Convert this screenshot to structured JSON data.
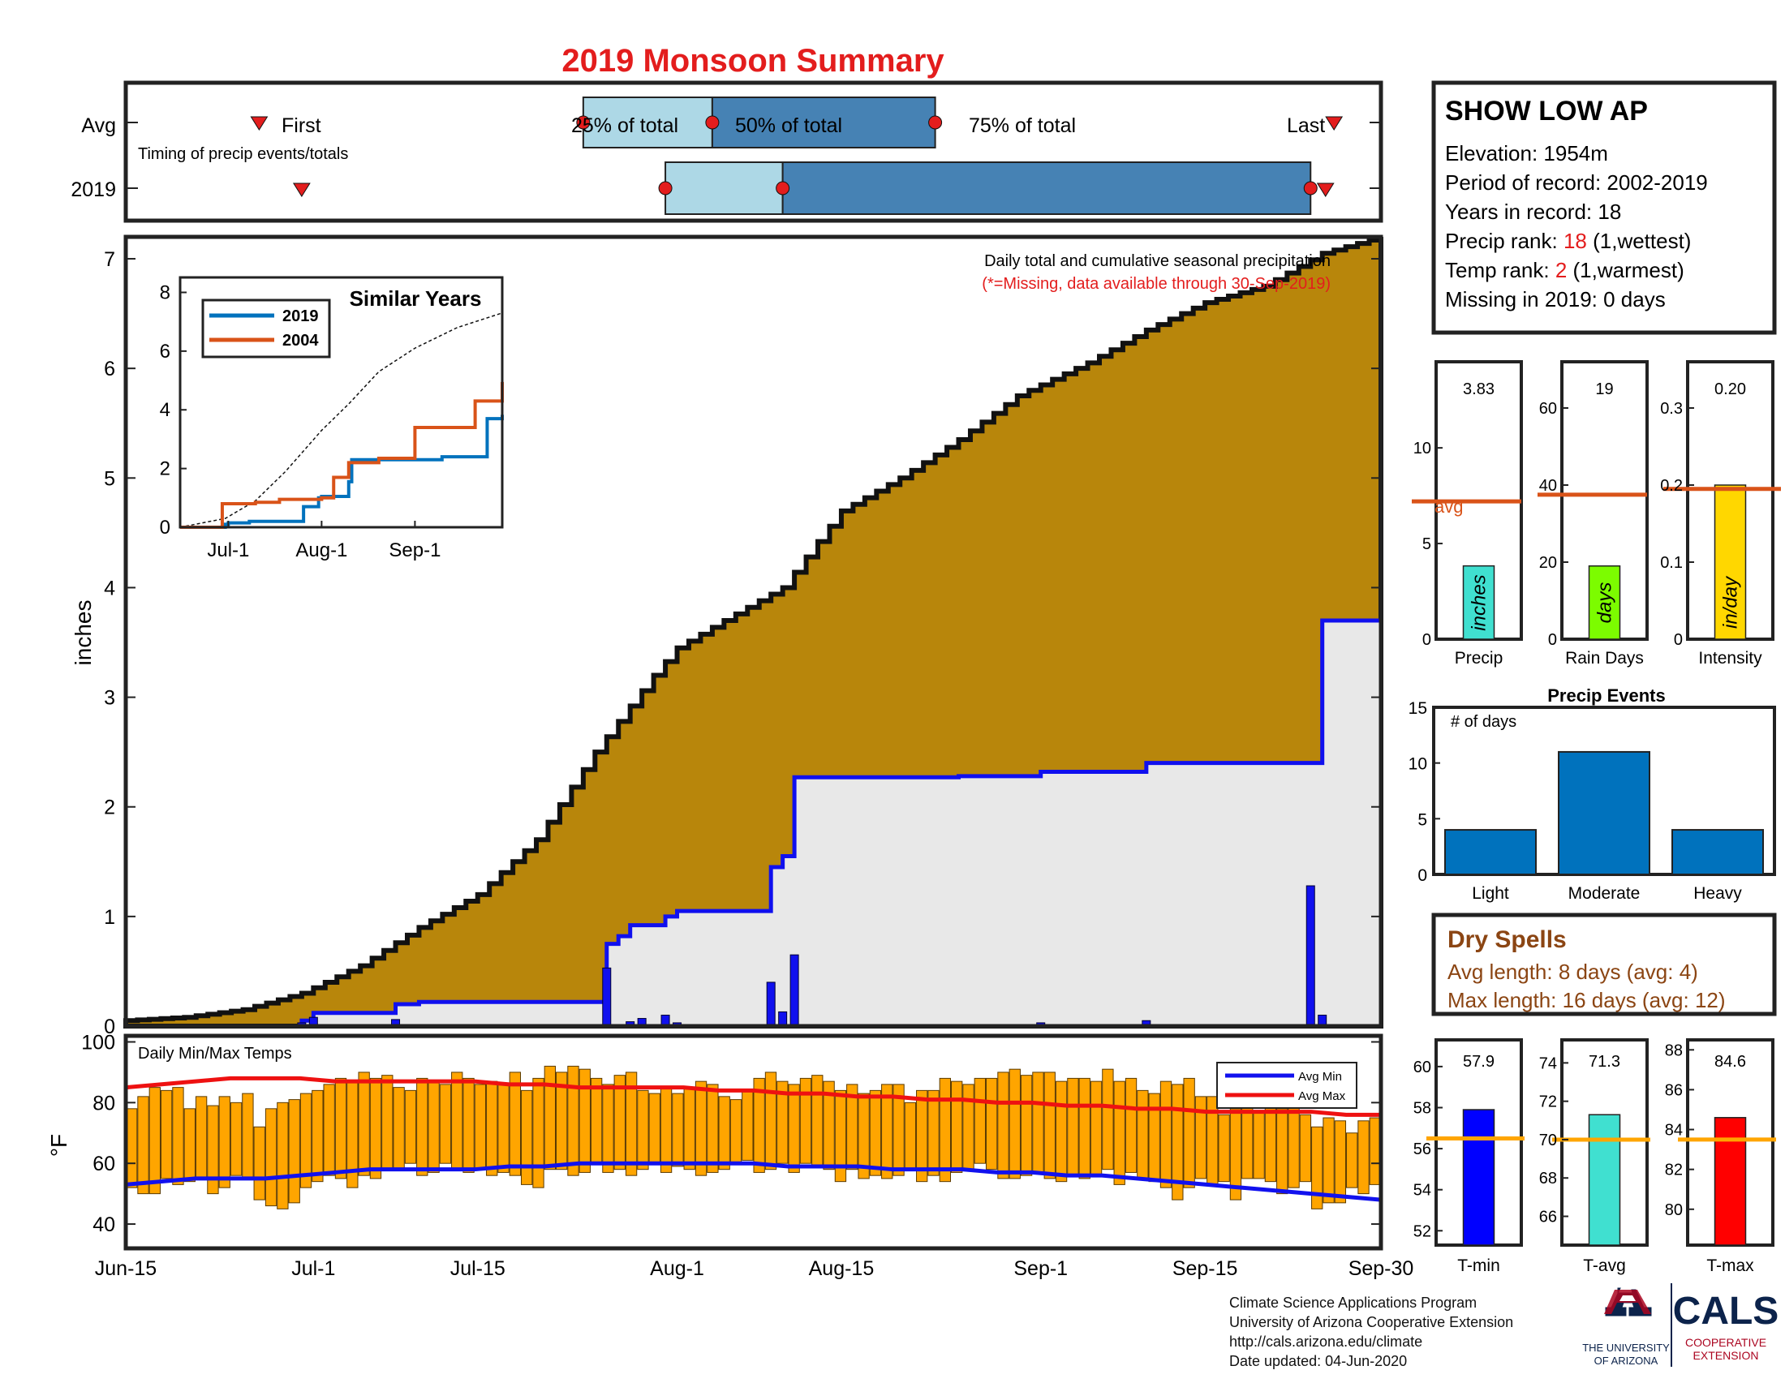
{
  "title": "2019 Monsoon Summary",
  "timing": {
    "row_avg": "Avg",
    "row_year": "2019",
    "subtitle": "Timing of precip events/totals",
    "first_label": "First",
    "last_label": "Last",
    "p25_label": "25% of total",
    "p50_label": "50% of total",
    "p75_label": "75% of total",
    "avg": {
      "first": "Jun-29",
      "p25": "Jul-24",
      "p50": "Aug-4",
      "p75": "Aug-23",
      "last": "Sep-26"
    },
    "y2019": {
      "first": "Jun-30",
      "p25": "Jul-31",
      "p50": "Aug-10",
      "p75": "Sep-24",
      "last": "Sep-25"
    }
  },
  "station": {
    "name": "SHOW LOW AP",
    "elevation": "Elevation: 1954m",
    "period": "Period of record: 2002-2019",
    "years": "Years in record: 18",
    "precip_rank_label": "Precip rank: ",
    "precip_rank_value": "18",
    "precip_rank_suffix": " (1,wettest)",
    "temp_rank_label": "Temp rank: ",
    "temp_rank_value": "2",
    "temp_rank_suffix": " (1,warmest)",
    "missing": "Missing in 2019: 0 days"
  },
  "main_chart": {
    "note1": "Daily total and cumulative seasonal precipitation",
    "note2": "(*=Missing, data available through 30-Sep-2019)",
    "ylabel": "inches",
    "x_ticks": [
      "Jun-15",
      "Jul-1",
      "Jul-15",
      "Aug-1",
      "Aug-15",
      "Sep-1",
      "Sep-15",
      "Sep-30"
    ],
    "y_ticks": [
      "0",
      "1",
      "2",
      "3",
      "4",
      "5",
      "6",
      "7"
    ]
  },
  "inset": {
    "title": "Similar Years",
    "legend": [
      "2019",
      "2004"
    ],
    "y_ticks": [
      "0",
      "2",
      "4",
      "6",
      "8"
    ],
    "x_ticks": [
      "Jul-1",
      "Aug-1",
      "Sep-1"
    ]
  },
  "bar_panels": [
    {
      "label": "Precip",
      "value": "3.83",
      "unit": "inches",
      "avg_label": "avg",
      "y_ticks": [
        "0",
        "5",
        "10"
      ]
    },
    {
      "label": "Rain Days",
      "value": "19",
      "unit": "days",
      "y_ticks": [
        "0",
        "20",
        "40",
        "60"
      ]
    },
    {
      "label": "Intensity",
      "value": "0.20",
      "unit": "in/day",
      "y_ticks": [
        "0",
        "0.1",
        "0.2",
        "0.3"
      ]
    }
  ],
  "events": {
    "title": "Precip Events",
    "ylabel": "# of days",
    "categories": [
      "Light",
      "Moderate",
      "Heavy"
    ],
    "y_ticks": [
      "0",
      "5",
      "10",
      "15"
    ]
  },
  "dry_spells": {
    "title": "Dry Spells",
    "avg": "Avg length: 8 days (avg: 4)",
    "max": "Max length: 16 days (avg: 12)"
  },
  "temp_chart": {
    "title": "Daily Min/Max Temps",
    "ylabel": "°F",
    "y_ticks": [
      "40",
      "60",
      "80",
      "100"
    ],
    "legend_min": "Avg Min",
    "legend_max": "Avg Max"
  },
  "temp_panels": [
    {
      "label": "T-min",
      "value": "57.9",
      "y_ticks": [
        "52",
        "54",
        "56",
        "58",
        "60"
      ]
    },
    {
      "label": "T-avg",
      "value": "71.3",
      "y_ticks": [
        "66",
        "68",
        "70",
        "72",
        "74"
      ]
    },
    {
      "label": "T-max",
      "value": "84.6",
      "y_ticks": [
        "80",
        "82",
        "84",
        "86",
        "88"
      ]
    }
  ],
  "footer": {
    "line1": "Climate Science Applications Program",
    "line2": "University of Arizona Cooperative Extension",
    "line3": "http://cals.arizona.edu/climate",
    "line4": " Date updated: 04-Jun-2020",
    "logo_ua_1": "THE UNIVERSITY",
    "logo_ua_2": "OF ARIZONA",
    "logo_cals": "CALS",
    "logo_coop_1": "COOPERATIVE",
    "logo_coop_2": "EXTENSION"
  },
  "chart_data": [
    {
      "type": "area",
      "title": "Daily total and cumulative seasonal precipitation",
      "ylabel": "inches",
      "ylim": [
        0,
        7.2
      ],
      "xlim": [
        "Jun-15",
        "Sep-30"
      ],
      "series": [
        {
          "name": "",
          "kind": "cumulative average",
          "x": [
            "Jun-15",
            "Jun-20",
            "Jun-25",
            "Jun-30",
            "Jul-5",
            "Jul-10",
            "Jul-15",
            "Jul-20",
            "Jul-25",
            "Jul-30",
            "Aug-1",
            "Aug-5",
            "Aug-10",
            "Aug-15",
            "Aug-20",
            "Aug-25",
            "Aug-30",
            "Sep-5",
            "Sep-10",
            "Sep-15",
            "Sep-20",
            "Sep-25",
            "Sep-30"
          ],
          "values": [
            0.05,
            0.08,
            0.15,
            0.3,
            0.55,
            0.9,
            1.2,
            1.7,
            2.5,
            3.2,
            3.45,
            3.7,
            4.0,
            4.7,
            5.0,
            5.35,
            5.75,
            6.05,
            6.35,
            6.6,
            6.75,
            7.05,
            7.2
          ]
        },
        {
          "name": "2019",
          "kind": "cumulative",
          "x": [
            "Jun-15",
            "Jun-30",
            "Jul-1",
            "Jul-8",
            "Jul-10",
            "Jul-25",
            "Jul-26",
            "Jul-27",
            "Jul-28",
            "Jul-31",
            "Aug-1",
            "Aug-8",
            "Aug-9",
            "Aug-10",
            "Aug-11",
            "Aug-25",
            "Sep-1",
            "Sep-10",
            "Sep-24",
            "Sep-25",
            "Sep-30"
          ],
          "values": [
            0,
            0.05,
            0.12,
            0.2,
            0.22,
            0.22,
            0.75,
            0.82,
            0.92,
            1.0,
            1.05,
            1.05,
            1.45,
            1.55,
            2.27,
            2.28,
            2.32,
            2.4,
            2.4,
            3.7,
            3.83
          ]
        }
      ],
      "daily_2019": {
        "x": [
          "Jun-30",
          "Jul-1",
          "Jul-8",
          "Jul-26",
          "Jul-28",
          "Jul-29",
          "Jul-31",
          "Aug-1",
          "Aug-9",
          "Aug-10",
          "Aug-11",
          "Sep-1",
          "Sep-10",
          "Sep-24",
          "Sep-25"
        ],
        "values": [
          0.03,
          0.08,
          0.06,
          0.53,
          0.04,
          0.07,
          0.1,
          0.03,
          0.4,
          0.13,
          0.65,
          0.03,
          0.05,
          1.28,
          0.1
        ]
      }
    },
    {
      "type": "line",
      "title": "Similar Years",
      "ylim": [
        0,
        8
      ],
      "xlim": [
        "Jun-15",
        "Sep-30"
      ],
      "series": [
        {
          "name": "",
          "style": "dashed average",
          "x": [
            "Jun-15",
            "Jun-30",
            "Jul-10",
            "Jul-20",
            "Aug-1",
            "Aug-10",
            "Aug-20",
            "Sep-1",
            "Sep-15",
            "Sep-30"
          ],
          "values": [
            0,
            0.3,
            0.9,
            1.9,
            3.3,
            4.2,
            5.3,
            6.1,
            6.8,
            7.3
          ]
        },
        {
          "name": "2019",
          "x": [
            "Jun-15",
            "Jun-29",
            "Jun-30",
            "Jul-1",
            "Jul-8",
            "Jul-25",
            "Jul-26",
            "Jul-31",
            "Aug-1",
            "Aug-8",
            "Aug-10",
            "Aug-11",
            "Sep-10",
            "Sep-24",
            "Sep-25",
            "Sep-30"
          ],
          "values": [
            0,
            0,
            0.1,
            0.15,
            0.2,
            0.2,
            0.7,
            1.0,
            1.05,
            1.05,
            1.55,
            2.3,
            2.4,
            2.4,
            3.7,
            3.83
          ]
        },
        {
          "name": "2004",
          "x": [
            "Jun-15",
            "Jun-28",
            "Jun-29",
            "Jul-10",
            "Jul-18",
            "Aug-1",
            "Aug-5",
            "Aug-10",
            "Aug-20",
            "Aug-31",
            "Sep-1",
            "Sep-20",
            "Sep-21",
            "Sep-29",
            "Sep-30"
          ],
          "values": [
            0,
            0,
            0.8,
            0.85,
            0.95,
            1.0,
            1.7,
            2.2,
            2.35,
            2.35,
            3.4,
            3.4,
            4.3,
            4.3,
            4.95
          ]
        }
      ]
    },
    {
      "type": "bar",
      "title": "Precip",
      "categories": [
        "Precip"
      ],
      "values": [
        3.83
      ],
      "avg": 7.2,
      "ylim": [
        0,
        14.5
      ],
      "ylabel": "inches"
    },
    {
      "type": "bar",
      "title": "Rain Days",
      "categories": [
        "Rain Days"
      ],
      "values": [
        19
      ],
      "avg": 37.5,
      "ylim": [
        0,
        72
      ],
      "ylabel": "days"
    },
    {
      "type": "bar",
      "title": "Intensity",
      "categories": [
        "Intensity"
      ],
      "values": [
        0.2
      ],
      "avg": 0.195,
      "ylim": [
        0,
        0.36
      ],
      "ylabel": "in/day"
    },
    {
      "type": "bar",
      "title": "Precip Events",
      "ylabel": "# of days",
      "categories": [
        "Light",
        "Moderate",
        "Heavy"
      ],
      "values": [
        4,
        11,
        4
      ],
      "ylim": [
        0,
        15
      ]
    },
    {
      "type": "bar",
      "title": "Daily Min/Max Temps",
      "ylabel": "°F",
      "ylim": [
        32,
        102
      ],
      "xlim": [
        "Jun-15",
        "Sep-30"
      ],
      "x_start": "Jun-15",
      "daily_min": [
        52,
        50,
        50,
        55,
        53,
        54,
        55,
        50,
        52,
        56,
        55,
        48,
        46,
        45,
        47,
        52,
        54,
        56,
        55,
        52,
        56,
        55,
        58,
        58,
        60,
        56,
        57,
        60,
        58,
        57,
        58,
        56,
        57,
        56,
        53,
        52,
        58,
        58,
        56,
        57,
        60,
        57,
        58,
        56,
        58,
        60,
        57,
        59,
        58,
        56,
        57,
        58,
        60,
        61,
        57,
        58,
        60,
        57,
        60,
        59,
        58,
        54,
        58,
        55,
        56,
        55,
        56,
        58,
        54,
        56,
        54,
        57,
        58,
        60,
        58,
        55,
        55,
        56,
        57,
        55,
        54,
        56,
        55,
        56,
        58,
        53,
        57,
        55,
        54,
        52,
        48,
        52,
        55,
        53,
        54,
        48,
        55,
        55,
        54,
        50,
        52,
        54,
        45,
        47,
        47,
        52,
        50,
        53
      ],
      "daily_max": [
        78,
        82,
        85,
        84,
        85,
        78,
        82,
        79,
        82,
        80,
        83,
        72,
        78,
        80,
        81,
        83,
        84,
        86,
        88,
        87,
        90,
        88,
        89,
        85,
        84,
        88,
        87,
        86,
        90,
        88,
        86,
        87,
        86,
        90,
        84,
        88,
        92,
        90,
        92,
        91,
        88,
        86,
        89,
        90,
        84,
        83,
        85,
        83,
        85,
        87,
        86,
        82,
        81,
        84,
        88,
        90,
        87,
        86,
        88,
        89,
        87,
        84,
        86,
        83,
        84,
        86,
        86,
        80,
        84,
        84,
        88,
        87,
        86,
        88,
        88,
        90,
        91,
        89,
        90,
        90,
        87,
        88,
        88,
        87,
        91,
        87,
        88,
        84,
        83,
        87,
        86,
        88,
        82,
        82,
        76,
        78,
        82,
        77,
        84,
        78,
        80,
        76,
        72,
        75,
        74,
        70,
        74,
        75
      ],
      "series": [
        {
          "name": "Avg Min",
          "values": [
            53,
            54,
            55,
            55,
            55,
            56,
            57,
            58,
            58,
            58,
            58,
            59,
            59,
            60,
            60,
            60,
            60,
            60,
            60,
            59,
            59,
            59,
            58,
            58,
            58,
            57,
            57,
            56,
            56,
            55,
            54,
            53,
            52,
            51,
            50,
            49,
            48
          ]
        },
        {
          "name": "Avg Max",
          "values": [
            85,
            86,
            87,
            88,
            88,
            88,
            87,
            87,
            87,
            87,
            87,
            86,
            86,
            85,
            85,
            85,
            85,
            84,
            84,
            83,
            83,
            82,
            82,
            81,
            81,
            80,
            80,
            79,
            79,
            78,
            78,
            77,
            77,
            77,
            77,
            76,
            76
          ]
        }
      ]
    },
    {
      "type": "bar",
      "title": "T-min",
      "categories": [
        "T-min"
      ],
      "values": [
        57.9
      ],
      "avg": 56.5,
      "ylim": [
        51.3,
        61.3
      ]
    },
    {
      "type": "bar",
      "title": "T-avg",
      "categories": [
        "T-avg"
      ],
      "values": [
        71.3
      ],
      "avg": 70.0,
      "ylim": [
        64.5,
        75.2
      ]
    },
    {
      "type": "bar",
      "title": "T-max",
      "categories": [
        "T-max"
      ],
      "values": [
        84.6
      ],
      "avg": 83.5,
      "ylim": [
        78.2,
        88.5
      ]
    }
  ]
}
